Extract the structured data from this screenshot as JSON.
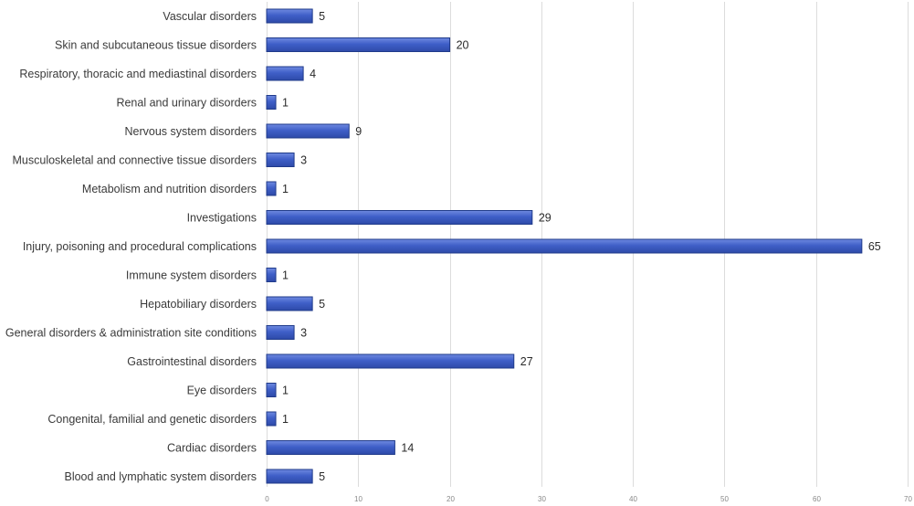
{
  "chart_data": {
    "type": "bar",
    "orientation": "horizontal",
    "title": "",
    "xlabel": "",
    "ylabel": "",
    "xlim": [
      0,
      70
    ],
    "xticks": [
      0,
      10,
      20,
      30,
      40,
      50,
      60,
      70
    ],
    "grid": true,
    "legend": "none",
    "bar_color": "#3f5fc8",
    "bar_edge_color": "#1f3a8a",
    "categories": [
      "Vascular disorders",
      "Skin and subcutaneous tissue disorders",
      "Respiratory, thoracic and mediastinal disorders",
      "Renal and urinary disorders",
      "Nervous system disorders",
      "Musculoskeletal and connective tissue disorders",
      "Metabolism and nutrition disorders",
      "Investigations",
      "Injury, poisoning and procedural complications",
      "Immune system disorders",
      "Hepatobiliary disorders",
      "General disorders & administration site conditions",
      "Gastrointestinal disorders",
      "Eye disorders",
      "Congenital, familial and genetic disorders",
      "Cardiac disorders",
      "Blood and lymphatic system disorders"
    ],
    "values": [
      5,
      20,
      4,
      1,
      9,
      3,
      1,
      29,
      65,
      1,
      5,
      3,
      27,
      1,
      1,
      14,
      5
    ]
  }
}
